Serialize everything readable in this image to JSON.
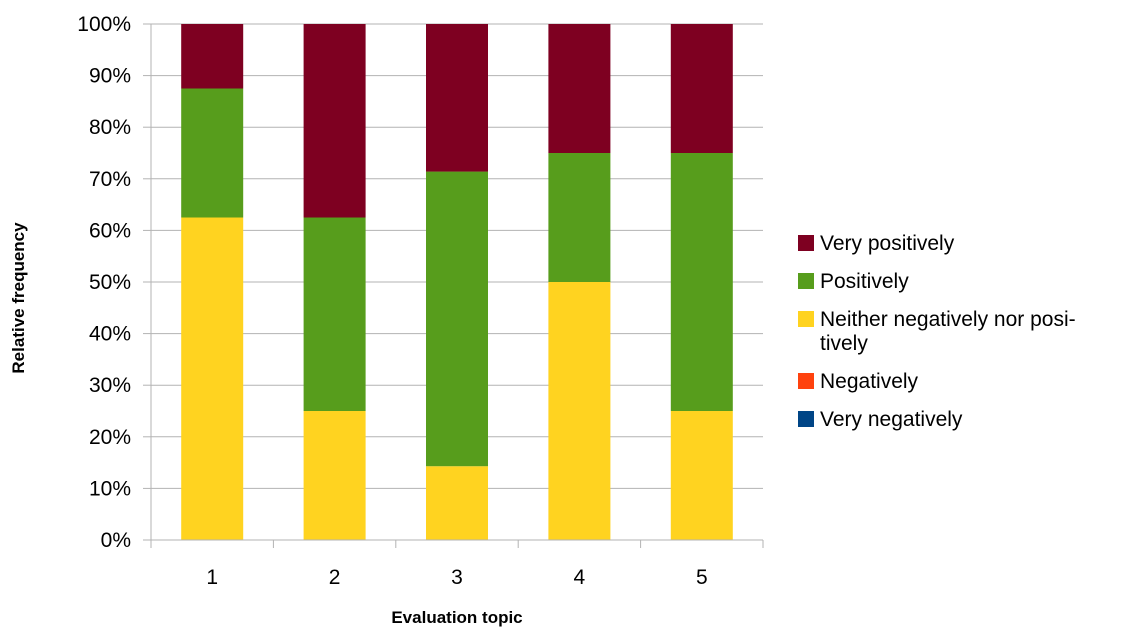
{
  "chart_data": {
    "type": "bar",
    "stacked": true,
    "percent_stacked": true,
    "categories": [
      "1",
      "2",
      "3",
      "4",
      "5"
    ],
    "xlabel": "Evaluation topic",
    "ylabel": "Relative frequency",
    "ylim": [
      0,
      100
    ],
    "yticks": [
      "0%",
      "10%",
      "20%",
      "30%",
      "40%",
      "50%",
      "60%",
      "70%",
      "80%",
      "90%",
      "100%"
    ],
    "grid": true,
    "legend_position": "right",
    "series": [
      {
        "name": "Very negatively",
        "color": "#004586",
        "values": [
          0,
          0,
          0,
          0,
          0
        ]
      },
      {
        "name": "Negatively",
        "color": "#ff420e",
        "values": [
          0,
          0,
          0,
          0,
          0
        ]
      },
      {
        "name": "Neither negatively nor posi-\ntively",
        "color": "#ffd320",
        "values": [
          62.5,
          25,
          14.3,
          50,
          25
        ]
      },
      {
        "name": "Positively",
        "color": "#579d1c",
        "values": [
          25,
          37.5,
          57.1,
          25,
          50
        ]
      },
      {
        "name": "Very positively",
        "color": "#7e0021",
        "values": [
          12.5,
          37.5,
          28.6,
          25,
          25
        ]
      }
    ]
  }
}
